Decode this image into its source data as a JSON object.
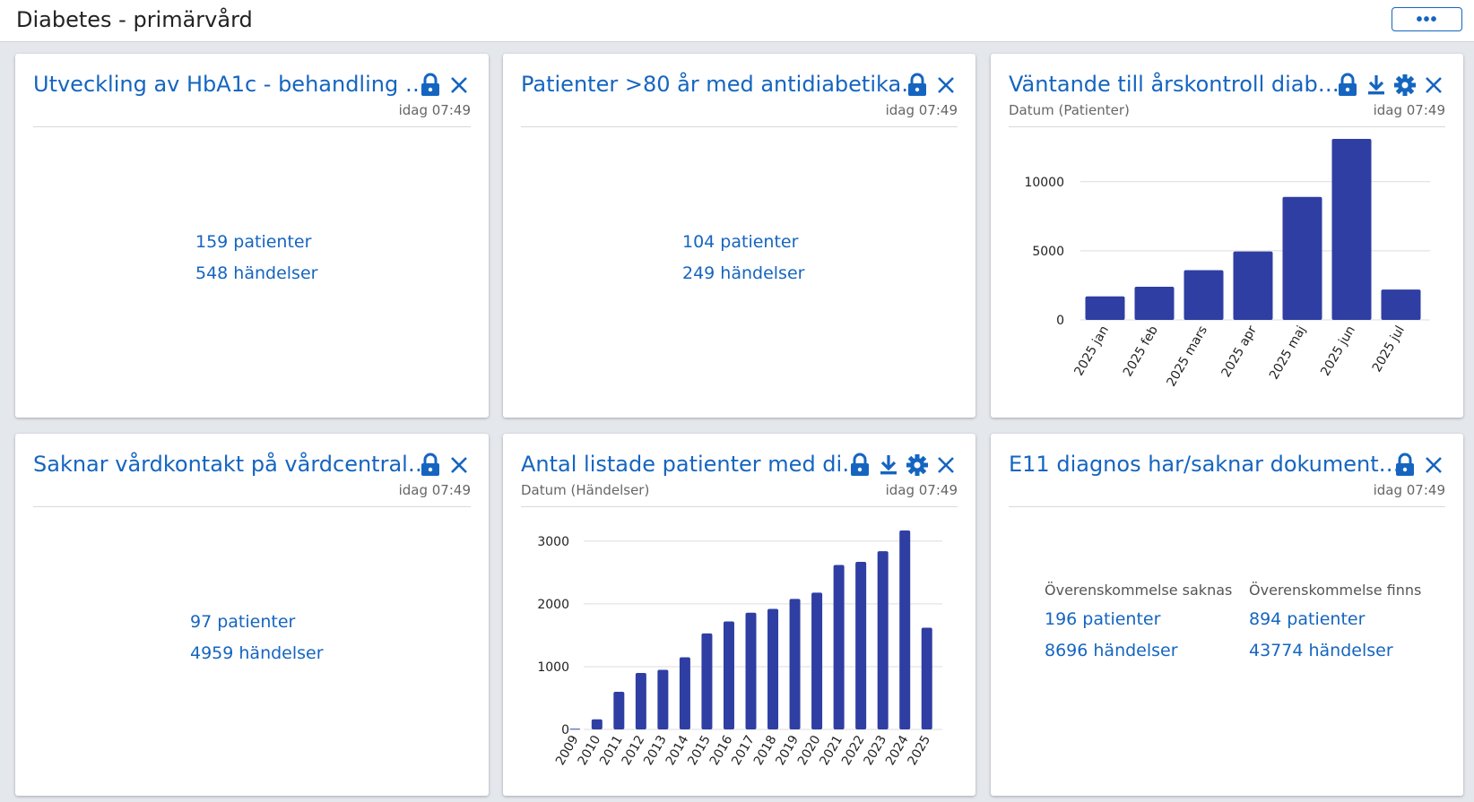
{
  "header": {
    "title": "Diabetes - primärvård",
    "more_label": "•••"
  },
  "icons": {
    "lock": "lock-icon",
    "close": "close-icon",
    "download": "download-icon",
    "settings": "gear-icon"
  },
  "colors": {
    "accent": "#1565c0",
    "bar": "#2f3ea3"
  },
  "cards": [
    {
      "title": "Utveckling av HbA1c - behandling …",
      "time": "idag 07:49",
      "stats": {
        "patients": "159 patienter",
        "events": "548 händelser"
      }
    },
    {
      "title": "Patienter >80 år med antidiabetika…",
      "time": "idag 07:49",
      "stats": {
        "patients": "104 patienter",
        "events": "249 händelser"
      }
    },
    {
      "title": "Väntande till årskontroll diab…",
      "subtitle": "Datum (Patienter)",
      "time": "idag 07:49"
    },
    {
      "title": "Saknar vårdkontakt på vårdcentral…",
      "time": "idag 07:49",
      "stats": {
        "patients": "97 patienter",
        "events": "4959 händelser"
      }
    },
    {
      "title": "Antal listade patienter med di…",
      "subtitle": "Datum (Händelser)",
      "time": "idag 07:49"
    },
    {
      "title": "E11 diagnos har/saknar dokument…",
      "time": "idag 07:49",
      "groups": [
        {
          "heading": "Överenskommelse saknas",
          "patients": "196 patienter",
          "events": "8696 händelser"
        },
        {
          "heading": "Överenskommelse finns",
          "patients": "894 patienter",
          "events": "43774 händelser"
        }
      ]
    }
  ],
  "chart_data": [
    {
      "type": "bar",
      "title": "Väntande till årskontroll diab…",
      "xlabel": "Datum (Patienter)",
      "ylabel": "",
      "categories": [
        "2025 jan",
        "2025 feb",
        "2025 mars",
        "2025 apr",
        "2025 maj",
        "2025 jun",
        "2025 jul"
      ],
      "values": [
        1700,
        2400,
        3600,
        4950,
        8900,
        13100,
        2200
      ],
      "yticks": [
        0,
        5000,
        10000
      ],
      "ylim": [
        0,
        13100
      ],
      "grid": true,
      "legend": "none"
    },
    {
      "type": "bar",
      "title": "Antal listade patienter med di…",
      "xlabel": "Datum (Händelser)",
      "ylabel": "",
      "categories": [
        "2009",
        "2010",
        "2011",
        "2012",
        "2013",
        "2014",
        "2015",
        "2016",
        "2017",
        "2018",
        "2019",
        "2020",
        "2021",
        "2022",
        "2023",
        "2024",
        "2025"
      ],
      "values": [
        10,
        160,
        600,
        900,
        950,
        1150,
        1530,
        1720,
        1860,
        1920,
        2080,
        2180,
        2620,
        2670,
        2840,
        3170,
        1620
      ],
      "yticks": [
        0,
        1000,
        2000,
        3000
      ],
      "ylim": [
        0,
        3170
      ],
      "grid": true,
      "legend": "none"
    }
  ]
}
